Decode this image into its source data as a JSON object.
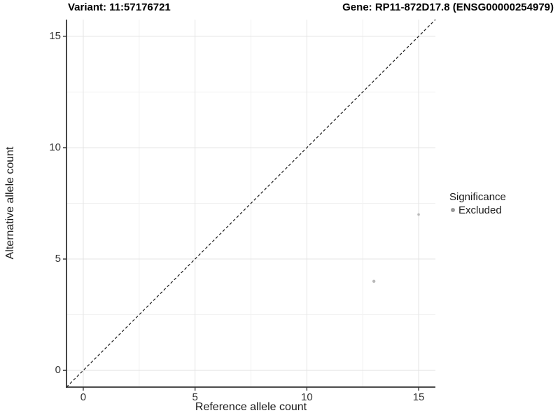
{
  "titles": {
    "left": "Variant: 11:57176721",
    "right": "Gene: RP11-872D17.8 (ENSG00000254979)"
  },
  "chart_data": {
    "type": "scatter",
    "xlabel": "Reference allele count",
    "ylabel": "Alternative allele count",
    "xlim": [
      -0.75,
      15.75
    ],
    "ylim": [
      -0.75,
      15.75
    ],
    "x_major_ticks": [
      0,
      5,
      10,
      15
    ],
    "y_major_ticks": [
      0,
      5,
      10,
      15
    ],
    "x_minor_ticks": [
      2.5,
      7.5,
      12.5
    ],
    "y_minor_ticks": [
      2.5,
      7.5,
      12.5
    ],
    "grid": true,
    "series": [
      {
        "name": "Excluded",
        "color": "#b9b9b9",
        "points": [
          {
            "x": 13,
            "y": 4,
            "r": 2.2
          },
          {
            "x": 15,
            "y": 7,
            "r": 1.8
          }
        ]
      }
    ],
    "reference_line": {
      "equation": "y = x",
      "style": "dashed",
      "color": "#1a1a1a"
    },
    "legend": {
      "title": "Significance",
      "position": "right",
      "entries": [
        {
          "label": "Excluded",
          "color": "#9a9a9a"
        }
      ]
    }
  },
  "colors": {
    "background": "#ffffff",
    "grid_major": "#e4e4e4",
    "grid_minor": "#f1f1f1",
    "axis_line": "#333333",
    "tick_text": "#333333"
  }
}
